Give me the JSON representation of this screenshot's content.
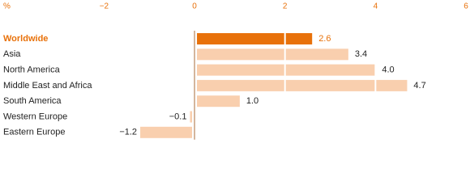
{
  "chart_data": {
    "type": "hbar",
    "x_label": "%",
    "categories": [
      "Worldwide",
      "Asia",
      "North America",
      "Middle East and Africa",
      "South America",
      "Western Europe",
      "Eastern Europe"
    ],
    "values": [
      2.6,
      3.4,
      4.0,
      4.7,
      1.0,
      -0.1,
      -1.2
    ],
    "value_labels": [
      "2.6",
      "3.4",
      "4.0",
      "4.7",
      "1.0",
      "−0.1",
      "−1.2"
    ],
    "colors": [
      "#e8710a",
      "#f9cfae",
      "#f9cfae",
      "#f9cfae",
      "#f9cfae",
      "#f9cfae",
      "#f9cfae"
    ],
    "highlight": 0,
    "xlim": [
      -4.3,
      6
    ],
    "xticks": [
      {
        "value": -2,
        "label": "−2"
      },
      0,
      2,
      4,
      6
    ],
    "grid": true
  }
}
